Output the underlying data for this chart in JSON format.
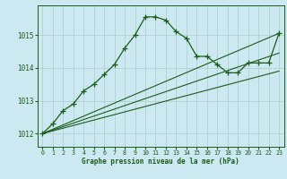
{
  "title": "Graphe pression niveau de la mer (hPa)",
  "bg_color": "#cce8f0",
  "grid_color": "#aacccc",
  "line_color": "#1a5c1a",
  "xlim": [
    -0.5,
    23.5
  ],
  "ylim": [
    1011.6,
    1015.9
  ],
  "yticks": [
    1012,
    1013,
    1014,
    1015
  ],
  "xticks": [
    0,
    1,
    2,
    3,
    4,
    5,
    6,
    7,
    8,
    9,
    10,
    11,
    12,
    13,
    14,
    15,
    16,
    17,
    18,
    19,
    20,
    21,
    22,
    23
  ],
  "series_main": {
    "x": [
      0,
      1,
      2,
      3,
      4,
      5,
      6,
      7,
      8,
      9,
      10,
      11,
      12,
      13,
      14,
      15,
      16,
      17,
      18,
      19,
      20,
      21,
      22,
      23
    ],
    "y": [
      1012.0,
      1012.3,
      1012.7,
      1012.9,
      1013.3,
      1013.5,
      1013.8,
      1014.1,
      1014.6,
      1015.0,
      1015.55,
      1015.55,
      1015.45,
      1015.1,
      1014.9,
      1014.35,
      1014.35,
      1014.1,
      1013.85,
      1013.85,
      1014.15,
      1014.15,
      1014.15,
      1015.05
    ]
  },
  "line1": {
    "x": [
      0,
      23
    ],
    "y": [
      1012.0,
      1015.05
    ]
  },
  "line2": {
    "x": [
      0,
      23
    ],
    "y": [
      1012.0,
      1013.9
    ]
  },
  "line3": {
    "x": [
      0,
      23
    ],
    "y": [
      1012.0,
      1014.45
    ]
  }
}
